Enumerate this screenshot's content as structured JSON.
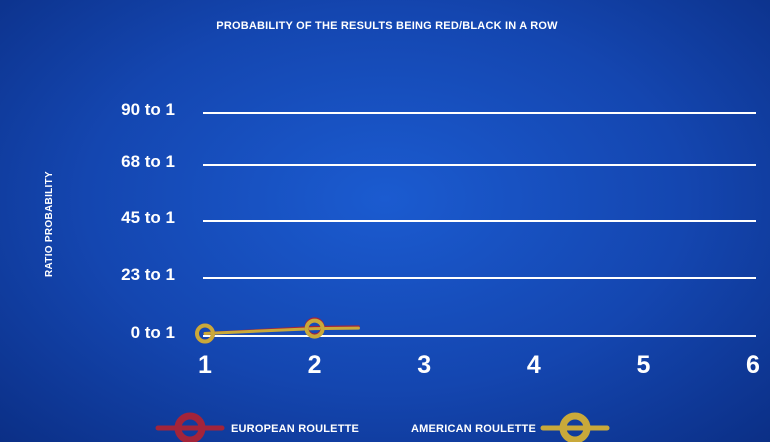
{
  "chart_data": {
    "type": "line",
    "title": "PROBABILITY OF THE RESULTS BEING RED/BLACK IN A ROW",
    "ylabel": "RATIO PROBABILITY",
    "xlabel": "",
    "x_ticks": [
      "1",
      "2",
      "3",
      "4",
      "5",
      "6"
    ],
    "y_ticks": [
      {
        "label": "90 to 1",
        "value": 90
      },
      {
        "label": "68 to 1",
        "value": 68
      },
      {
        "label": "45 to 1",
        "value": 45
      },
      {
        "label": "23 to 1",
        "value": 23
      },
      {
        "label": "0 to 1",
        "value": 0
      }
    ],
    "xlim": [
      1,
      6
    ],
    "ylim": [
      0,
      90
    ],
    "grid": true,
    "legend_placement": "bottom",
    "series": [
      {
        "name": "EUROPEAN ROULETTE",
        "color": "#a3243a",
        "x": [
          1,
          2
        ],
        "y": [
          1,
          3.5
        ],
        "trail_to": [
          2.4,
          3.7
        ]
      },
      {
        "name": "AMERICAN ROULETTE",
        "color": "#c9a93a",
        "x": [
          1,
          2
        ],
        "y": [
          1,
          3
        ],
        "trail_to": [
          2.4,
          3.2
        ]
      }
    ],
    "colors": {
      "grid": "#ffffff",
      "background": "#1446b0"
    }
  }
}
